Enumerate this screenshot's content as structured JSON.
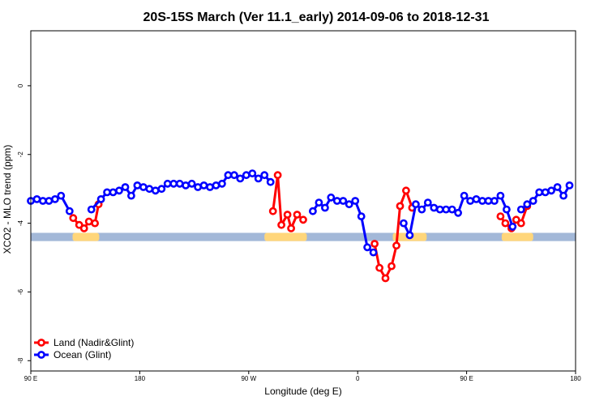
{
  "chart_data": {
    "type": "line",
    "title": "20S-15S March (Ver 11.1_early)   2014-09-06 to 2018-12-31",
    "xlabel": "Longitude (deg E)",
    "ylabel": "XCO2 - MLO trend (ppm)",
    "xlim": [
      90,
      540
    ],
    "ylim": [
      -8.3,
      1.6
    ],
    "x_ticks": [
      {
        "value": 90,
        "label": "90 E"
      },
      {
        "value": 180,
        "label": "180"
      },
      {
        "value": 270,
        "label": "90 W"
      },
      {
        "value": 360,
        "label": "0"
      },
      {
        "value": 450,
        "label": "90 E"
      },
      {
        "value": 540,
        "label": "180"
      }
    ],
    "y_ticks": [
      {
        "value": 0,
        "label": "0"
      },
      {
        "value": -2,
        "label": "-2"
      },
      {
        "value": -4,
        "label": "-4"
      },
      {
        "value": -6,
        "label": "-6"
      },
      {
        "value": -8,
        "label": "-8"
      }
    ],
    "legend": {
      "position": "bottom-left",
      "entries": [
        {
          "label": "Land (Nadir&Glint)",
          "color": "#ff0000"
        },
        {
          "label": "Ocean (Glint)",
          "color": "#0000ff"
        }
      ]
    },
    "band": {
      "y_center": -4.4,
      "y_halfwidth": 0.12,
      "ocean_color": "#a3b8d8",
      "land_color": "#ffd67a",
      "land_ranges": [
        [
          124.5,
          146.5
        ],
        [
          283,
          318
        ],
        [
          389,
          417
        ],
        [
          479,
          505
        ]
      ]
    },
    "series": [
      {
        "name": "Land (Nadir&Glint)",
        "color": "#ff0000",
        "segments": [
          [
            [
              125,
              -3.85
            ],
            [
              130,
              -4.05
            ],
            [
              134,
              -4.15
            ],
            [
              138,
              -3.95
            ],
            [
              143,
              -4.0
            ],
            [
              146,
              -3.45
            ]
          ],
          [
            [
              290,
              -3.65
            ],
            [
              294,
              -2.6
            ],
            [
              297,
              -4.05
            ],
            [
              302,
              -3.75
            ],
            [
              305,
              -4.15
            ],
            [
              310,
              -3.75
            ],
            [
              315,
              -3.9
            ]
          ],
          [
            [
              374,
              -4.6
            ],
            [
              378,
              -5.3
            ],
            [
              383,
              -5.6
            ],
            [
              388,
              -5.25
            ],
            [
              392,
              -4.65
            ],
            [
              395,
              -3.5
            ],
            [
              400,
              -3.05
            ],
            [
              405,
              -3.55
            ]
          ],
          [
            [
              478,
              -3.8
            ],
            [
              482,
              -4.0
            ],
            [
              487,
              -4.15
            ],
            [
              491,
              -3.9
            ],
            [
              495,
              -4.0
            ],
            [
              500,
              -3.5
            ]
          ]
        ]
      },
      {
        "name": "Ocean (Glint)",
        "color": "#0000ff",
        "segments": [
          [
            [
              90,
              -3.35
            ],
            [
              95,
              -3.3
            ],
            [
              100,
              -3.35
            ],
            [
              105,
              -3.35
            ],
            [
              110,
              -3.3
            ],
            [
              115,
              -3.2
            ],
            [
              122,
              -3.65
            ]
          ],
          [
            [
              140,
              -3.6
            ],
            [
              148,
              -3.3
            ],
            [
              153,
              -3.1
            ],
            [
              158,
              -3.1
            ],
            [
              163,
              -3.05
            ],
            [
              168,
              -2.95
            ],
            [
              173,
              -3.2
            ],
            [
              178,
              -2.9
            ],
            [
              183,
              -2.95
            ],
            [
              188,
              -3.0
            ],
            [
              193,
              -3.05
            ],
            [
              198,
              -3.0
            ],
            [
              203,
              -2.85
            ],
            [
              208,
              -2.85
            ],
            [
              213,
              -2.85
            ],
            [
              218,
              -2.9
            ],
            [
              223,
              -2.85
            ],
            [
              228,
              -2.95
            ],
            [
              233,
              -2.9
            ],
            [
              238,
              -2.95
            ],
            [
              243,
              -2.9
            ],
            [
              248,
              -2.85
            ],
            [
              253,
              -2.6
            ],
            [
              258,
              -2.6
            ],
            [
              263,
              -2.7
            ],
            [
              268,
              -2.6
            ],
            [
              273,
              -2.55
            ],
            [
              278,
              -2.7
            ],
            [
              283,
              -2.6
            ],
            [
              288,
              -2.8
            ]
          ],
          [
            [
              323,
              -3.65
            ],
            [
              328,
              -3.4
            ],
            [
              333,
              -3.55
            ],
            [
              338,
              -3.25
            ],
            [
              343,
              -3.35
            ],
            [
              348,
              -3.35
            ],
            [
              353,
              -3.45
            ],
            [
              358,
              -3.35
            ],
            [
              363,
              -3.8
            ],
            [
              368,
              -4.7
            ],
            [
              373,
              -4.85
            ]
          ],
          [
            [
              398,
              -4.0
            ],
            [
              403,
              -4.35
            ],
            [
              408,
              -3.45
            ],
            [
              413,
              -3.6
            ],
            [
              418,
              -3.4
            ],
            [
              423,
              -3.55
            ],
            [
              428,
              -3.6
            ],
            [
              433,
              -3.6
            ],
            [
              438,
              -3.6
            ],
            [
              443,
              -3.7
            ],
            [
              448,
              -3.2
            ],
            [
              453,
              -3.35
            ],
            [
              458,
              -3.3
            ],
            [
              463,
              -3.35
            ],
            [
              468,
              -3.35
            ],
            [
              473,
              -3.35
            ],
            [
              478,
              -3.2
            ],
            [
              483,
              -3.6
            ],
            [
              488,
              -4.1
            ]
          ],
          [
            [
              495,
              -3.6
            ],
            [
              500,
              -3.45
            ],
            [
              505,
              -3.35
            ],
            [
              510,
              -3.1
            ],
            [
              515,
              -3.1
            ],
            [
              520,
              -3.05
            ],
            [
              525,
              -2.95
            ],
            [
              530,
              -3.2
            ],
            [
              535,
              -2.9
            ]
          ]
        ]
      }
    ]
  }
}
